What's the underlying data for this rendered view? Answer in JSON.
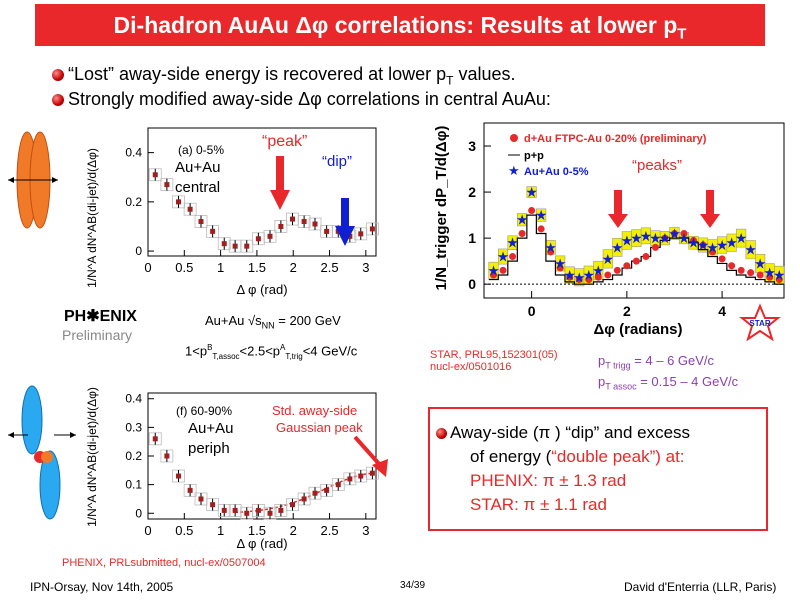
{
  "title": "Di-hadron AuAu Δφ correlations: Results at lower p",
  "title_sub": "T",
  "bullets": [
    {
      "pre": "“Lost” away-side energy is recovered at lower p",
      "sub": "T",
      "post": " values."
    },
    {
      "text": "Strongly modified away-side Δφ correlations in central AuAu:"
    }
  ],
  "phenix_top": {
    "panel_label": "(a) 0-5%",
    "system": "Au+Au",
    "centrality": "central",
    "peak_label": "“peak”",
    "dip_label": "“dip”",
    "ylabel": "1/N^A dN^AB(di-jet)/d(Δφ)",
    "xlabel": "Δ φ (rad)",
    "yticks": [
      "0",
      "0.2",
      "0.4"
    ],
    "xticks": [
      "0",
      "0.5",
      "1",
      "1.5",
      "2",
      "2.5",
      "3"
    ]
  },
  "phenix_logo": "PH✱ENIX",
  "phenix_prelim": "Preliminary",
  "phenix_energy": "Au+Au √s",
  "phenix_energy_sub": "NN",
  "phenix_energy_post": " = 200 GeV",
  "phenix_pt": "1<p",
  "phenix_pt_rest": "<2.5<p",
  "phenix_pt_end": "<4 GeV/c",
  "phenix_pt_sub1": "T,assoc",
  "phenix_pt_sup1": "B",
  "phenix_pt_sub2": "T,trig",
  "phenix_pt_sup2": "A",
  "phenix_bottom": {
    "panel_label": "(f) 60-90%",
    "system": "Au+Au",
    "centrality": "periph",
    "fit_label_1": "Std. away-side",
    "fit_label_2": "Gaussian peak",
    "ylabel": "1/N^A dN^AB(di-jet)/d(Δφ)",
    "xlabel": "Δ φ (rad)",
    "yticks": [
      "0",
      "0.1",
      "0.2",
      "0.3",
      "0.4"
    ],
    "xticks": [
      "0",
      "0.5",
      "1",
      "1.5",
      "2",
      "2.5",
      "3"
    ]
  },
  "phenix_ref": "PHENIX, PRLsubmitted, nucl-ex/0507004",
  "star": {
    "legend": [
      "d+Au FTPC-Au 0-20% (preliminary)",
      "p+p",
      "Au+Au 0-5%"
    ],
    "peaks_label": "“peaks”",
    "ylabel": "1/N_trigger dP_T/d(Δφ)",
    "xlabel": "Δφ (radians)",
    "yticks": [
      "0",
      "1",
      "2",
      "3"
    ],
    "xticks": [
      "0",
      "2",
      "4"
    ],
    "logo": "STAR"
  },
  "star_ref_1": "STAR, PRL95,152301(05)",
  "star_ref_2": "nucl-ex/0501016",
  "star_pt_trig": "p",
  "star_pt_trig_sub": "T trigg",
  "star_pt_trig_val": " = 4 – 6 GeV/c",
  "star_pt_assoc": "p",
  "star_pt_assoc_sub": "T assoc",
  "star_pt_assoc_val": " = 0.15 – 4 GeV/c",
  "summary": {
    "line1": "Away-side (π ) “dip” and excess",
    "line2_pre": "of energy (",
    "line2_red": "“double peak”) at:",
    "line3": "PHENIX:  π  ± 1.3 rad",
    "line4": "STAR:     π  ± 1.1 rad"
  },
  "footer": {
    "left": "IPN-Orsay, Nov 14th, 2005",
    "center": "34/39",
    "right": "David d'Enterria (LLR, Paris)"
  },
  "colors": {
    "title_bg": "#e8282a",
    "accent_red": "#e8282a",
    "accent_blue": "#1020d0",
    "star_yellow": "#f4f000"
  },
  "chart_data": [
    {
      "type": "scatter",
      "title": "(a) 0-5%",
      "xlabel": "Δ φ (rad)",
      "ylabel": "1/N^A dN^AB(di-jet)/d(Δφ)",
      "xlim": [
        0,
        3.14
      ],
      "ylim": [
        -0.02,
        0.5
      ],
      "series": [
        {
          "x": [
            0.1,
            0.26,
            0.42,
            0.58,
            0.73,
            0.89,
            1.05,
            1.2,
            1.36,
            1.52,
            1.68,
            1.83,
            1.99,
            2.15,
            2.3,
            2.46,
            2.62,
            2.78,
            2.93,
            3.09
          ],
          "y": [
            0.31,
            0.27,
            0.2,
            0.17,
            0.12,
            0.08,
            0.03,
            0.02,
            0.02,
            0.05,
            0.06,
            0.1,
            0.13,
            0.12,
            0.11,
            0.08,
            0.08,
            0.06,
            0.07,
            0.09
          ]
        }
      ]
    },
    {
      "type": "scatter",
      "title": "(f) 60-90%",
      "xlabel": "Δ φ (rad)",
      "ylabel": "1/N^A dN^AB(di-jet)/d(Δφ)",
      "xlim": [
        0,
        3.14
      ],
      "ylim": [
        -0.02,
        0.42
      ],
      "series": [
        {
          "x": [
            0.1,
            0.26,
            0.42,
            0.58,
            0.73,
            0.89,
            1.05,
            1.2,
            1.36,
            1.52,
            1.68,
            1.83,
            1.99,
            2.15,
            2.3,
            2.46,
            2.62,
            2.78,
            2.93,
            3.09
          ],
          "y": [
            0.26,
            0.2,
            0.13,
            0.08,
            0.05,
            0.03,
            0.01,
            0.01,
            0.0,
            0.01,
            0.0,
            0.01,
            0.03,
            0.05,
            0.07,
            0.08,
            0.1,
            0.12,
            0.13,
            0.14
          ]
        }
      ]
    },
    {
      "type": "scatter",
      "xlabel": "Δφ (radians)",
      "ylabel": "1/N_trigger dP_T/d(Δφ)",
      "xlim": [
        -1,
        5.3
      ],
      "ylim": [
        -0.3,
        3.5
      ],
      "series": [
        {
          "name": "d+Au FTPC-Au 0-20% (preliminary)",
          "x": [
            -0.8,
            -0.6,
            -0.4,
            -0.2,
            0.0,
            0.2,
            0.4,
            0.6,
            0.8,
            1.0,
            1.2,
            1.4,
            1.6,
            1.8,
            2.0,
            2.2,
            2.4,
            2.6,
            2.8,
            3.0,
            3.2,
            3.4,
            3.6,
            3.8,
            4.0,
            4.2,
            4.4,
            4.6,
            4.8,
            5.0,
            5.2
          ],
          "y": [
            0.2,
            0.3,
            0.6,
            1.1,
            1.6,
            1.2,
            0.7,
            0.35,
            0.15,
            0.1,
            0.1,
            0.15,
            0.2,
            0.3,
            0.4,
            0.5,
            0.6,
            0.8,
            1.0,
            1.1,
            1.1,
            0.95,
            0.85,
            0.7,
            0.55,
            0.4,
            0.3,
            0.25,
            0.2,
            0.15,
            0.1
          ]
        },
        {
          "name": "p+p",
          "x": [
            -0.8,
            -0.6,
            -0.4,
            -0.2,
            0.0,
            0.2,
            0.4,
            0.6,
            0.8,
            1.0,
            1.2,
            1.4,
            1.6,
            1.8,
            2.0,
            2.2,
            2.4,
            2.6,
            2.8,
            3.0,
            3.2,
            3.4,
            3.6,
            3.8,
            4.0,
            4.2,
            4.4,
            4.6,
            4.8,
            5.0,
            5.2
          ],
          "y": [
            0.1,
            0.2,
            0.5,
            1.0,
            1.5,
            1.1,
            0.5,
            0.2,
            0.05,
            0.0,
            0.0,
            0.05,
            0.1,
            0.2,
            0.35,
            0.5,
            0.6,
            0.8,
            0.95,
            1.0,
            1.0,
            0.9,
            0.75,
            0.6,
            0.45,
            0.3,
            0.2,
            0.15,
            0.1,
            0.05,
            0.0
          ]
        },
        {
          "name": "Au+Au 0-5%",
          "x": [
            -0.8,
            -0.6,
            -0.4,
            -0.2,
            0.0,
            0.2,
            0.4,
            0.6,
            0.8,
            1.0,
            1.2,
            1.4,
            1.6,
            1.8,
            2.0,
            2.2,
            2.4,
            2.6,
            2.8,
            3.0,
            3.2,
            3.4,
            3.6,
            3.8,
            4.0,
            4.2,
            4.4,
            4.6,
            4.8,
            5.0,
            5.2
          ],
          "y": [
            0.3,
            0.6,
            0.9,
            1.4,
            2.0,
            1.5,
            0.8,
            0.45,
            0.2,
            0.15,
            0.2,
            0.3,
            0.55,
            0.8,
            0.95,
            1.0,
            1.05,
            1.0,
            1.0,
            1.1,
            1.0,
            0.9,
            0.85,
            0.8,
            0.85,
            0.9,
            1.0,
            0.75,
            0.45,
            0.25,
            0.2
          ]
        }
      ]
    }
  ]
}
